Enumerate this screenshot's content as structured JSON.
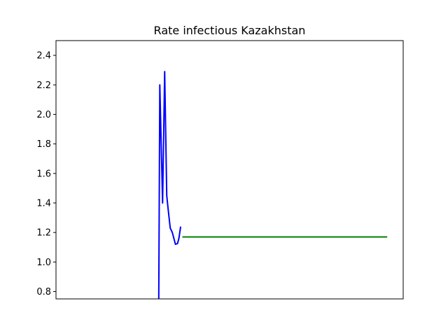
{
  "chart_data": {
    "type": "line",
    "title": "Rate infectious Kazakhstan",
    "xlabel": "",
    "ylabel": "",
    "xlim": [
      0,
      100
    ],
    "ylim": [
      0.75,
      2.5
    ],
    "yticks": [
      0.8,
      1.0,
      1.2,
      1.4,
      1.6,
      1.8,
      2.0,
      2.2,
      2.4
    ],
    "yticks_labels": [
      "0.8",
      "1.0",
      "1.2",
      "1.4",
      "1.6",
      "1.8",
      "2.0",
      "2.2",
      "2.4"
    ],
    "grid": false,
    "series": [
      {
        "color": "#0000ff",
        "x": [
          29.6,
          29.9,
          30.7,
          31.3,
          31.9,
          32.2,
          32.9,
          33.5,
          34.4,
          35.0,
          35.4,
          35.9
        ],
        "y": [
          0.75,
          2.2,
          1.4,
          2.29,
          1.45,
          1.38,
          1.23,
          1.2,
          1.12,
          1.125,
          1.16,
          1.24
        ]
      },
      {
        "color": "#008000",
        "x": [
          36.4,
          95.4
        ],
        "y": [
          1.17,
          1.17
        ]
      }
    ]
  }
}
